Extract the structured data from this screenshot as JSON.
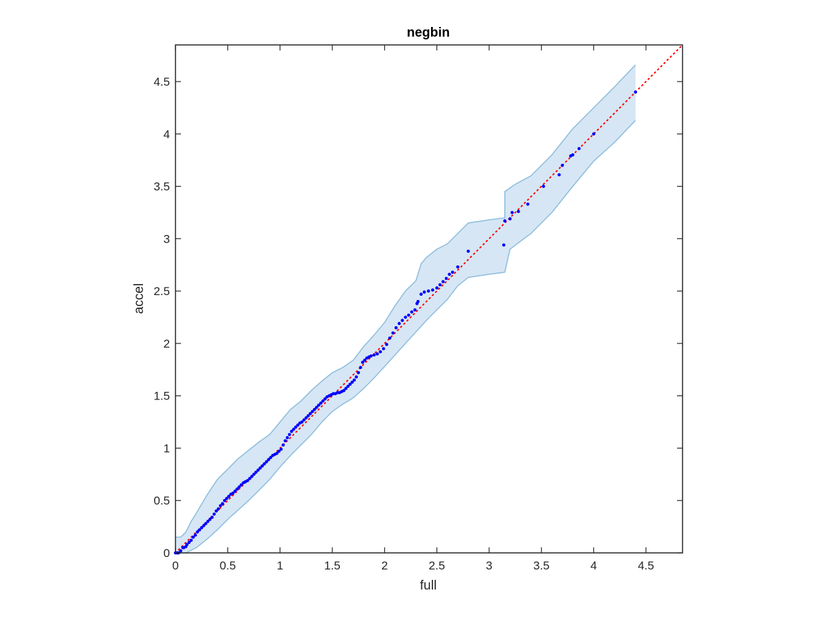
{
  "chart_data": {
    "type": "scatter",
    "title": "negbin",
    "xlabel": "full",
    "ylabel": "accel",
    "xlim": [
      0,
      4.85
    ],
    "ylim": [
      0,
      4.85
    ],
    "xticks": [
      "0",
      "0.5",
      "1",
      "1.5",
      "2",
      "2.5",
      "3",
      "3.5",
      "4",
      "4.5"
    ],
    "yticks": [
      "0",
      "0.5",
      "1",
      "1.5",
      "2",
      "2.5",
      "3",
      "3.5",
      "4",
      "4.5"
    ],
    "tick_values": [
      0,
      0.5,
      1,
      1.5,
      2,
      2.5,
      3,
      3.5,
      4,
      4.5
    ],
    "grid": false,
    "reference_line": {
      "style": "dotted",
      "color": "#ff0000",
      "x": [
        0,
        4.85
      ],
      "y": [
        0,
        4.85
      ]
    },
    "band": {
      "fill": "#d6e6f4",
      "stroke": "#8cbcdd",
      "upper": [
        [
          0,
          0.15
        ],
        [
          0.05,
          0.15
        ],
        [
          0.1,
          0.2
        ],
        [
          0.15,
          0.3
        ],
        [
          0.2,
          0.38
        ],
        [
          0.3,
          0.55
        ],
        [
          0.4,
          0.7
        ],
        [
          0.5,
          0.8
        ],
        [
          0.6,
          0.9
        ],
        [
          0.7,
          0.98
        ],
        [
          0.8,
          1.06
        ],
        [
          0.9,
          1.13
        ],
        [
          1.0,
          1.25
        ],
        [
          1.1,
          1.37
        ],
        [
          1.2,
          1.45
        ],
        [
          1.3,
          1.55
        ],
        [
          1.4,
          1.64
        ],
        [
          1.5,
          1.72
        ],
        [
          1.6,
          1.77
        ],
        [
          1.7,
          1.84
        ],
        [
          1.8,
          1.97
        ],
        [
          1.9,
          2.08
        ],
        [
          2.0,
          2.2
        ],
        [
          2.1,
          2.36
        ],
        [
          2.2,
          2.5
        ],
        [
          2.3,
          2.6
        ],
        [
          2.35,
          2.76
        ],
        [
          2.4,
          2.82
        ],
        [
          2.5,
          2.9
        ],
        [
          2.6,
          2.95
        ],
        [
          2.8,
          3.15
        ],
        [
          3.0,
          3.18
        ],
        [
          3.15,
          3.2
        ],
        [
          3.15,
          3.45
        ],
        [
          3.25,
          3.52
        ],
        [
          3.4,
          3.6
        ],
        [
          3.6,
          3.8
        ],
        [
          3.8,
          4.05
        ],
        [
          4.0,
          4.25
        ],
        [
          4.2,
          4.45
        ],
        [
          4.4,
          4.66
        ]
      ],
      "lower": [
        [
          0,
          0
        ],
        [
          0.1,
          0
        ],
        [
          0.2,
          0.05
        ],
        [
          0.3,
          0.13
        ],
        [
          0.4,
          0.22
        ],
        [
          0.5,
          0.32
        ],
        [
          0.6,
          0.41
        ],
        [
          0.7,
          0.5
        ],
        [
          0.8,
          0.6
        ],
        [
          0.9,
          0.7
        ],
        [
          1.0,
          0.82
        ],
        [
          1.1,
          0.93
        ],
        [
          1.2,
          1.03
        ],
        [
          1.3,
          1.13
        ],
        [
          1.4,
          1.25
        ],
        [
          1.5,
          1.35
        ],
        [
          1.6,
          1.42
        ],
        [
          1.7,
          1.48
        ],
        [
          1.8,
          1.57
        ],
        [
          1.9,
          1.67
        ],
        [
          2.0,
          1.78
        ],
        [
          2.1,
          1.89
        ],
        [
          2.2,
          2.0
        ],
        [
          2.3,
          2.11
        ],
        [
          2.4,
          2.22
        ],
        [
          2.5,
          2.32
        ],
        [
          2.6,
          2.42
        ],
        [
          2.7,
          2.55
        ],
        [
          2.8,
          2.63
        ],
        [
          3.0,
          2.66
        ],
        [
          3.15,
          2.68
        ],
        [
          3.2,
          2.9
        ],
        [
          3.4,
          3.05
        ],
        [
          3.6,
          3.25
        ],
        [
          3.8,
          3.5
        ],
        [
          4.0,
          3.74
        ],
        [
          4.2,
          3.92
        ],
        [
          4.4,
          4.13
        ]
      ]
    },
    "series": [
      {
        "color": "#0000ff",
        "points": [
          [
            0.0,
            0.0
          ],
          [
            0.01,
            0.0
          ],
          [
            0.02,
            0.0
          ],
          [
            0.03,
            0.0
          ],
          [
            0.05,
            0.02
          ],
          [
            0.07,
            0.05
          ],
          [
            0.08,
            0.05
          ],
          [
            0.1,
            0.06
          ],
          [
            0.11,
            0.08
          ],
          [
            0.13,
            0.1
          ],
          [
            0.15,
            0.12
          ],
          [
            0.17,
            0.15
          ],
          [
            0.19,
            0.17
          ],
          [
            0.21,
            0.2
          ],
          [
            0.23,
            0.22
          ],
          [
            0.25,
            0.24
          ],
          [
            0.27,
            0.26
          ],
          [
            0.29,
            0.28
          ],
          [
            0.31,
            0.3
          ],
          [
            0.33,
            0.32
          ],
          [
            0.35,
            0.34
          ],
          [
            0.37,
            0.37
          ],
          [
            0.39,
            0.4
          ],
          [
            0.41,
            0.42
          ],
          [
            0.43,
            0.45
          ],
          [
            0.45,
            0.47
          ],
          [
            0.47,
            0.5
          ],
          [
            0.49,
            0.52
          ],
          [
            0.51,
            0.54
          ],
          [
            0.53,
            0.56
          ],
          [
            0.55,
            0.57
          ],
          [
            0.57,
            0.59
          ],
          [
            0.59,
            0.61
          ],
          [
            0.61,
            0.63
          ],
          [
            0.63,
            0.65
          ],
          [
            0.65,
            0.67
          ],
          [
            0.67,
            0.68
          ],
          [
            0.69,
            0.69
          ],
          [
            0.71,
            0.71
          ],
          [
            0.73,
            0.73
          ],
          [
            0.75,
            0.75
          ],
          [
            0.77,
            0.77
          ],
          [
            0.79,
            0.79
          ],
          [
            0.81,
            0.81
          ],
          [
            0.83,
            0.83
          ],
          [
            0.85,
            0.85
          ],
          [
            0.87,
            0.87
          ],
          [
            0.89,
            0.89
          ],
          [
            0.91,
            0.91
          ],
          [
            0.93,
            0.93
          ],
          [
            0.95,
            0.94
          ],
          [
            0.97,
            0.95
          ],
          [
            0.99,
            0.97
          ],
          [
            1.01,
            0.99
          ],
          [
            1.03,
            1.03
          ],
          [
            1.05,
            1.07
          ],
          [
            1.07,
            1.1
          ],
          [
            1.09,
            1.13
          ],
          [
            1.11,
            1.16
          ],
          [
            1.13,
            1.18
          ],
          [
            1.15,
            1.2
          ],
          [
            1.17,
            1.22
          ],
          [
            1.19,
            1.24
          ],
          [
            1.21,
            1.25
          ],
          [
            1.23,
            1.27
          ],
          [
            1.25,
            1.29
          ],
          [
            1.27,
            1.31
          ],
          [
            1.29,
            1.33
          ],
          [
            1.31,
            1.35
          ],
          [
            1.33,
            1.37
          ],
          [
            1.35,
            1.39
          ],
          [
            1.37,
            1.41
          ],
          [
            1.39,
            1.43
          ],
          [
            1.41,
            1.45
          ],
          [
            1.43,
            1.47
          ],
          [
            1.45,
            1.49
          ],
          [
            1.47,
            1.5
          ],
          [
            1.49,
            1.51
          ],
          [
            1.51,
            1.52
          ],
          [
            1.53,
            1.52
          ],
          [
            1.55,
            1.53
          ],
          [
            1.57,
            1.53
          ],
          [
            1.59,
            1.54
          ],
          [
            1.61,
            1.55
          ],
          [
            1.63,
            1.57
          ],
          [
            1.65,
            1.59
          ],
          [
            1.67,
            1.61
          ],
          [
            1.69,
            1.63
          ],
          [
            1.71,
            1.65
          ],
          [
            1.73,
            1.68
          ],
          [
            1.75,
            1.72
          ],
          [
            1.77,
            1.77
          ],
          [
            1.79,
            1.82
          ],
          [
            1.81,
            1.84
          ],
          [
            1.83,
            1.86
          ],
          [
            1.85,
            1.87
          ],
          [
            1.87,
            1.88
          ],
          [
            1.9,
            1.89
          ],
          [
            1.93,
            1.9
          ],
          [
            1.96,
            1.92
          ],
          [
            1.99,
            1.95
          ],
          [
            2.02,
            1.99
          ],
          [
            2.05,
            2.05
          ],
          [
            2.08,
            2.1
          ],
          [
            2.11,
            2.15
          ],
          [
            2.14,
            2.19
          ],
          [
            2.17,
            2.22
          ],
          [
            2.2,
            2.25
          ],
          [
            2.23,
            2.27
          ],
          [
            2.26,
            2.3
          ],
          [
            2.29,
            2.32
          ],
          [
            2.31,
            2.38
          ],
          [
            2.32,
            2.4
          ],
          [
            2.35,
            2.47
          ],
          [
            2.38,
            2.49
          ],
          [
            2.42,
            2.5
          ],
          [
            2.46,
            2.51
          ],
          [
            2.5,
            2.53
          ],
          [
            2.53,
            2.56
          ],
          [
            2.56,
            2.59
          ],
          [
            2.59,
            2.62
          ],
          [
            2.62,
            2.66
          ],
          [
            2.65,
            2.68
          ],
          [
            2.7,
            2.73
          ],
          [
            2.8,
            2.88
          ],
          [
            3.14,
            2.94
          ],
          [
            3.15,
            3.17
          ],
          [
            3.2,
            3.19
          ],
          [
            3.22,
            3.25
          ],
          [
            3.28,
            3.26
          ],
          [
            3.37,
            3.33
          ],
          [
            3.52,
            3.5
          ],
          [
            3.67,
            3.61
          ],
          [
            3.7,
            3.7
          ],
          [
            3.78,
            3.79
          ],
          [
            3.8,
            3.8
          ],
          [
            3.86,
            3.86
          ],
          [
            4.0,
            4.0
          ],
          [
            4.4,
            4.4
          ]
        ]
      }
    ]
  }
}
